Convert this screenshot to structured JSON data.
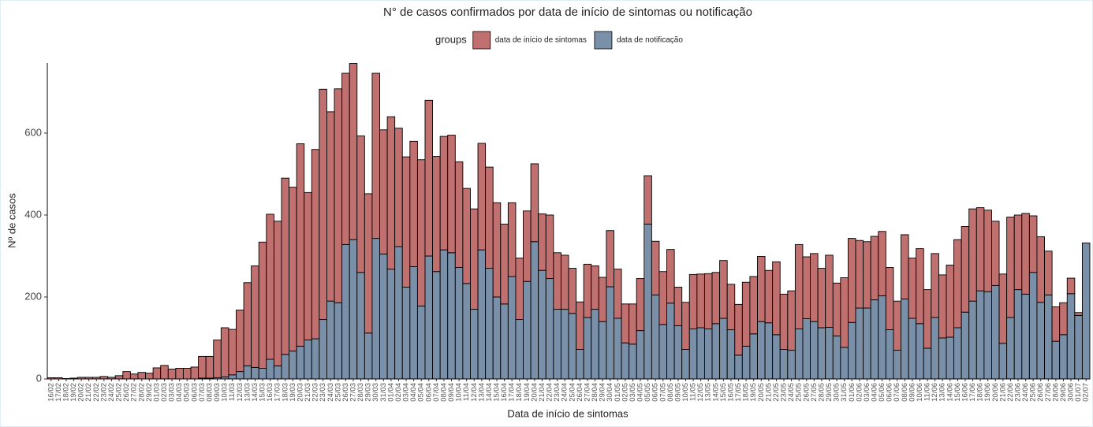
{
  "chart_data": {
    "type": "stacked_bar",
    "title": "N° de casos confirmados por data de início de sintomas ou notificação",
    "xlabel": "Data de início de sintomas",
    "ylabel": "Nº de casos",
    "legend_title": "groups",
    "legend_position": "top",
    "categories": [
      "16/02",
      "17/02",
      "18/02",
      "19/02",
      "20/02",
      "21/02",
      "22/02",
      "23/02",
      "24/02",
      "25/02",
      "26/02",
      "27/02",
      "28/02",
      "29/02",
      "01/03",
      "02/03",
      "03/03",
      "04/03",
      "05/03",
      "06/03",
      "07/03",
      "08/03",
      "09/03",
      "10/03",
      "11/03",
      "12/03",
      "13/03",
      "14/03",
      "15/03",
      "16/03",
      "17/03",
      "18/03",
      "19/03",
      "20/03",
      "21/03",
      "22/03",
      "23/03",
      "24/03",
      "25/03",
      "26/03",
      "27/03",
      "28/03",
      "29/03",
      "30/03",
      "31/03",
      "01/04",
      "02/04",
      "03/04",
      "04/04",
      "05/04",
      "06/04",
      "07/04",
      "08/04",
      "09/04",
      "10/04",
      "11/04",
      "12/04",
      "13/04",
      "14/04",
      "15/04",
      "16/04",
      "17/04",
      "18/04",
      "19/04",
      "20/04",
      "21/04",
      "22/04",
      "23/04",
      "24/04",
      "25/04",
      "26/04",
      "27/04",
      "28/04",
      "29/04",
      "30/04",
      "01/05",
      "02/05",
      "03/05",
      "04/05",
      "05/05",
      "06/05",
      "07/05",
      "08/05",
      "09/05",
      "10/05",
      "11/05",
      "12/05",
      "13/05",
      "14/05",
      "15/05",
      "16/05",
      "17/05",
      "18/05",
      "19/05",
      "20/05",
      "21/05",
      "22/05",
      "23/05",
      "24/05",
      "25/05",
      "26/05",
      "27/05",
      "28/05",
      "29/05",
      "30/05",
      "31/05",
      "01/06",
      "02/06",
      "03/06",
      "04/06",
      "05/06",
      "06/06",
      "07/06",
      "08/06",
      "09/06",
      "10/06",
      "11/06",
      "12/06",
      "13/06",
      "14/06",
      "15/06",
      "16/06",
      "17/06",
      "18/06",
      "19/06",
      "20/06",
      "21/06",
      "22/06",
      "23/06",
      "24/06",
      "25/06",
      "26/06",
      "27/06",
      "28/06",
      "29/06",
      "30/06",
      "01/07",
      "02/07"
    ],
    "series": [
      {
        "name": "data de início de sintomas",
        "color": "#c0706e",
        "values": [
          3,
          3,
          1,
          2,
          4,
          4,
          4,
          6,
          4,
          8,
          18,
          12,
          16,
          14,
          27,
          33,
          24,
          26,
          26,
          29,
          53,
          53,
          92,
          120,
          111,
          150,
          203,
          248,
          308,
          354,
          353,
          430,
          400,
          494,
          360,
          462,
          562,
          462,
          522,
          418,
          430,
          333,
          340,
          403,
          303,
          372,
          289,
          318,
          306,
          357,
          380,
          281,
          277,
          287,
          258,
          232,
          245,
          260,
          247,
          230,
          195,
          180,
          150,
          172,
          190,
          138,
          155,
          138,
          132,
          110,
          116,
          130,
          106,
          108,
          137,
          120,
          95,
          98,
          127,
          118,
          131,
          129,
          131,
          94,
          115,
          133,
          131,
          135,
          125,
          141,
          111,
          124,
          156,
          140,
          159,
          128,
          178,
          135,
          145,
          206,
          151,
          166,
          145,
          176,
          129,
          170,
          205,
          165,
          162,
          155,
          157,
          152,
          120,
          157,
          147,
          183,
          143,
          156,
          154,
          176,
          215,
          209,
          225,
          203,
          199,
          157,
          169,
          245,
          182,
          197,
          138,
          160,
          107,
          84,
          78,
          38,
          7,
          0
        ]
      },
      {
        "name": "data de notificação",
        "color": "#7a8fa8",
        "values": [
          0,
          0,
          0,
          0,
          0,
          0,
          0,
          0,
          0,
          0,
          0,
          0,
          0,
          0,
          0,
          0,
          0,
          0,
          0,
          0,
          2,
          2,
          3,
          5,
          10,
          18,
          32,
          28,
          26,
          48,
          32,
          60,
          68,
          80,
          95,
          98,
          145,
          190,
          186,
          328,
          340,
          260,
          112,
          343,
          305,
          268,
          323,
          224,
          274,
          178,
          300,
          262,
          315,
          308,
          272,
          233,
          170,
          315,
          270,
          200,
          183,
          250,
          145,
          238,
          335,
          265,
          245,
          170,
          170,
          160,
          72,
          150,
          170,
          140,
          225,
          148,
          88,
          85,
          118,
          378,
          205,
          133,
          185,
          130,
          72,
          122,
          125,
          122,
          135,
          148,
          120,
          58,
          80,
          110,
          140,
          137,
          108,
          72,
          70,
          122,
          147,
          140,
          125,
          126,
          105,
          77,
          138,
          173,
          173,
          193,
          203,
          120,
          70,
          195,
          148,
          135,
          75,
          150,
          100,
          102,
          125,
          163,
          190,
          215,
          213,
          228,
          87,
          150,
          218,
          207,
          260,
          187,
          205,
          92,
          108,
          208,
          155,
          332
        ]
      }
    ],
    "ylim": [
      0,
      771
    ],
    "yticks": [
      0,
      200,
      400,
      600
    ],
    "grid": false
  }
}
